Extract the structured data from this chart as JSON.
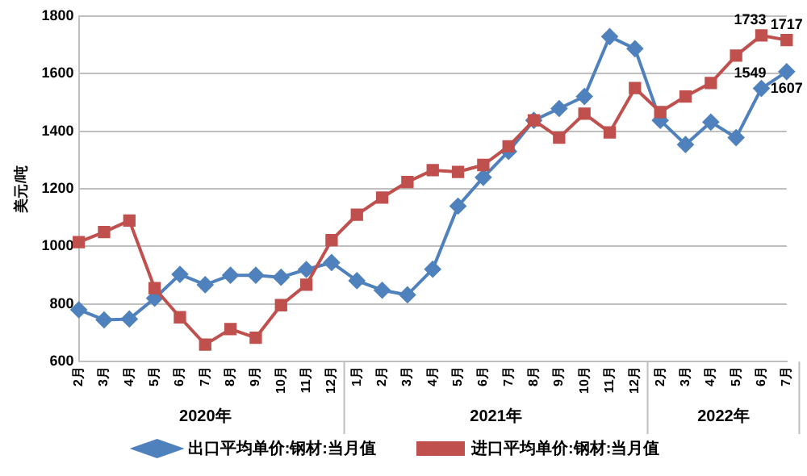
{
  "chart_data": {
    "type": "line",
    "ylabel": "美元/吨",
    "categories": [
      "2月",
      "3月",
      "4月",
      "5月",
      "6月",
      "7月",
      "8月",
      "9月",
      "10月",
      "11月",
      "12月",
      "1月",
      "2月",
      "3月",
      "4月",
      "5月",
      "6月",
      "7月",
      "8月",
      "9月",
      "10月",
      "11月",
      "12月",
      "2月",
      "3月",
      "4月",
      "5月",
      "6月",
      "7月"
    ],
    "series": [
      {
        "name": "出口平均单价:钢材:当月值",
        "color": "#4f81bd",
        "marker": "diamond",
        "values": [
          780,
          745,
          748,
          820,
          903,
          867,
          900,
          900,
          893,
          920,
          944,
          881,
          848,
          832,
          921,
          1140,
          1240,
          1330,
          1438,
          1479,
          1521,
          1729,
          1687,
          1438,
          1354,
          1432,
          1378,
          1549,
          1607
        ],
        "value_labels": [
          null,
          null,
          null,
          null,
          null,
          null,
          null,
          null,
          null,
          null,
          null,
          null,
          null,
          null,
          null,
          null,
          null,
          null,
          null,
          null,
          null,
          null,
          null,
          null,
          null,
          null,
          null,
          "1549",
          "1607"
        ]
      },
      {
        "name": "进口平均单价:钢材:当月值",
        "color": "#c0504d",
        "marker": "square",
        "values": [
          1015,
          1050,
          1090,
          855,
          754,
          659,
          713,
          683,
          796,
          867,
          1022,
          1110,
          1170,
          1224,
          1265,
          1259,
          1283,
          1348,
          1438,
          1378,
          1461,
          1396,
          1550,
          1467,
          1521,
          1568,
          1663,
          1733,
          1717
        ],
        "value_labels": [
          null,
          null,
          null,
          null,
          null,
          null,
          null,
          null,
          null,
          null,
          null,
          null,
          null,
          null,
          null,
          null,
          null,
          null,
          null,
          null,
          null,
          null,
          null,
          null,
          null,
          null,
          null,
          "1733",
          "1717"
        ]
      }
    ],
    "ylim": [
      600,
      1800
    ],
    "yticks": [
      600,
      800,
      1000,
      1200,
      1400,
      1600,
      1800
    ],
    "grid": "y",
    "legend": "bottom",
    "annotations": [
      "2020年",
      "2021年",
      "2022年"
    ]
  }
}
